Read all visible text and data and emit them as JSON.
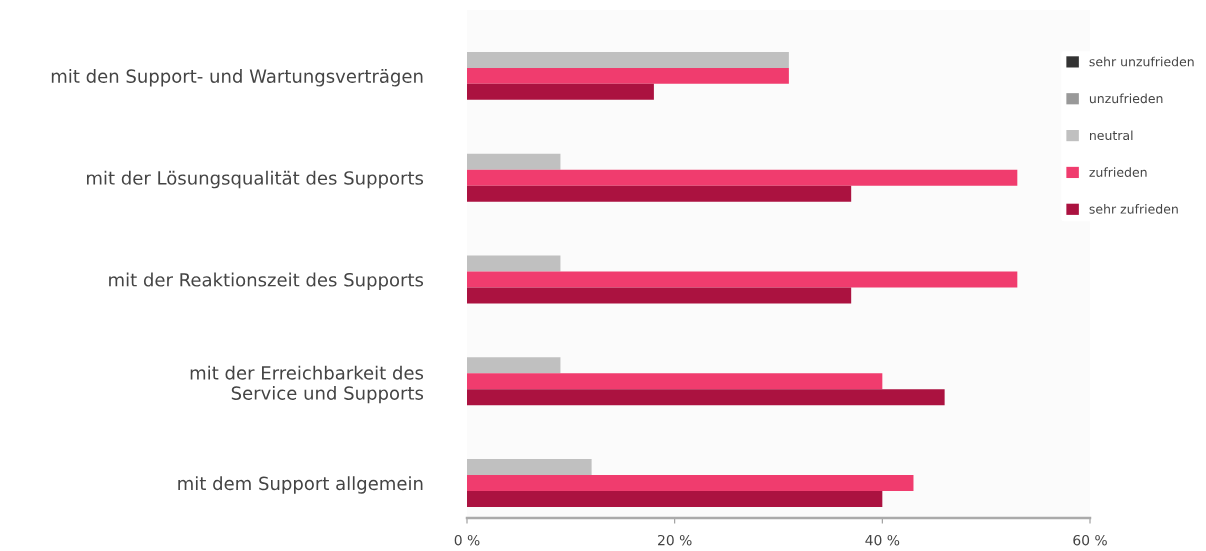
{
  "chart_data": {
    "type": "bar",
    "orientation": "horizontal",
    "categories": [
      "mit den Support- und Wartungsverträgen",
      "mit der Lösungsqualität des Supports",
      "mit der Reaktionszeit des Supports",
      "mit der Erreichbarkeit des\nService und Supports",
      "mit dem Support allgemein"
    ],
    "series": [
      {
        "name": "sehr unzufrieden",
        "color": "#333333",
        "values": [
          null,
          null,
          null,
          null,
          null
        ]
      },
      {
        "name": "unzufrieden",
        "color": "#999999",
        "values": [
          null,
          null,
          null,
          null,
          null
        ]
      },
      {
        "name": "neutral",
        "color": "#c0c0c0",
        "values": [
          31,
          9,
          9,
          9,
          12
        ]
      },
      {
        "name": "zufrieden",
        "color": "#f03c6e",
        "values": [
          31,
          53,
          53,
          40,
          43
        ]
      },
      {
        "name": "sehr zufrieden",
        "color": "#ab1240",
        "values": [
          18,
          37,
          37,
          46,
          40
        ]
      }
    ],
    "xlim": [
      0,
      60
    ],
    "xticks": [
      {
        "value": 0,
        "label": "0 %"
      },
      {
        "value": 20,
        "label": "20 %"
      },
      {
        "value": 40,
        "label": "40 %"
      },
      {
        "value": 60,
        "label": "60 %"
      }
    ],
    "legend": "top right"
  }
}
